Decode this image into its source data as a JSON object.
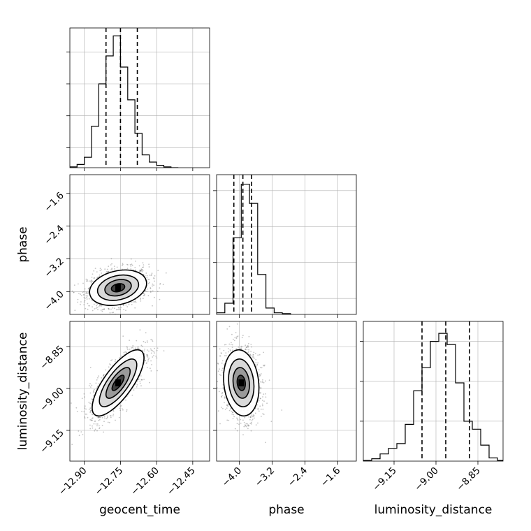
{
  "chart_data": {
    "type": "corner",
    "parameters": [
      {
        "label": "geocent_time",
        "range": [
          -12.96,
          -12.38
        ],
        "ticks": [
          "-12.90",
          "-12.75",
          "-12.60",
          "-12.45"
        ],
        "tick_values": [
          -12.9,
          -12.75,
          -12.6,
          -12.45
        ],
        "quantiles": [
          -12.81,
          -12.75,
          -12.68
        ],
        "hist_edges": [
          -12.96,
          -12.93,
          -12.9,
          -12.87,
          -12.84,
          -12.81,
          -12.78,
          -12.75,
          -12.72,
          -12.69,
          -12.66,
          -12.63,
          -12.6,
          -12.57,
          -12.54,
          -12.51
        ],
        "hist_counts": [
          1,
          4,
          13,
          52,
          105,
          140,
          165,
          126,
          85,
          43,
          16,
          7,
          3,
          1,
          0
        ],
        "hist_ylim": [
          0,
          175
        ],
        "hist_ytick_values": [
          25,
          65,
          105,
          145
        ]
      },
      {
        "label": "phase",
        "range": [
          -4.55,
          -1.15
        ],
        "ticks": [
          "-4.0",
          "-3.2",
          "-2.4",
          "-1.6"
        ],
        "tick_values": [
          -4.0,
          -3.2,
          -2.4,
          -1.6
        ],
        "quantiles": [
          -4.13,
          -3.91,
          -3.7
        ],
        "hist_edges": [
          -4.55,
          -4.35,
          -4.15,
          -3.95,
          -3.75,
          -3.55,
          -3.35,
          -3.15,
          -2.95,
          -2.75
        ],
        "hist_counts": [
          2,
          14,
          96,
          163,
          139,
          50,
          8,
          2,
          1
        ],
        "hist_ylim": [
          0,
          175
        ],
        "hist_ytick_values": [
          20,
          65,
          110,
          155
        ]
      },
      {
        "label": "luminosity_distance",
        "range": [
          -9.26,
          -8.76
        ],
        "ticks": [
          "-9.15",
          "-9.00",
          "-8.85"
        ],
        "tick_values": [
          -9.15,
          -9.0,
          -8.85
        ],
        "quantiles": [
          -9.05,
          -8.965,
          -8.88
        ],
        "hist_edges": [
          -9.26,
          -9.23,
          -9.2,
          -9.17,
          -9.14,
          -9.11,
          -9.08,
          -9.05,
          -9.02,
          -8.99,
          -8.96,
          -8.93,
          -8.9,
          -8.87,
          -8.84,
          -8.81,
          -8.78,
          -8.76
        ],
        "hist_counts": [
          1,
          3,
          9,
          16,
          22,
          46,
          88,
          117,
          150,
          160,
          146,
          98,
          50,
          40,
          20,
          4,
          1
        ],
        "hist_ylim": [
          0,
          175
        ],
        "hist_ytick_values": [
          50,
          100,
          150
        ]
      }
    ],
    "pairs": [
      {
        "x": 0,
        "y": 1,
        "center": [
          -12.76,
          -3.9
        ],
        "sigma": [
          0.055,
          0.2
        ],
        "rho": 0.25
      },
      {
        "x": 0,
        "y": 2,
        "center": [
          -12.76,
          -8.98
        ],
        "sigma": [
          0.05,
          0.055
        ],
        "rho": 0.75
      },
      {
        "x": 1,
        "y": 2,
        "center": [
          -3.95,
          -8.98
        ],
        "sigma": [
          0.2,
          0.055
        ],
        "rho": -0.15
      }
    ],
    "title": "",
    "grid": true
  }
}
